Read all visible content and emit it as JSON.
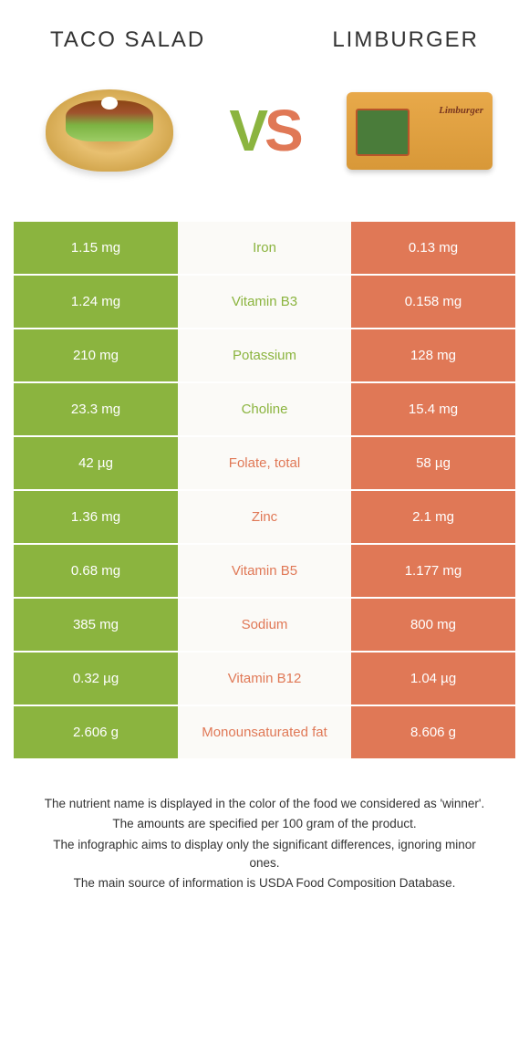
{
  "header": {
    "left_title": "Taco salad",
    "right_title": "Limburger"
  },
  "vs": {
    "v": "V",
    "s": "S"
  },
  "colors": {
    "left": "#8bb43f",
    "right": "#e07856",
    "mid_bg": "#fbfaf7"
  },
  "rows": [
    {
      "left": "1.15 mg",
      "nutrient": "Iron",
      "right": "0.13 mg",
      "winner": "left"
    },
    {
      "left": "1.24 mg",
      "nutrient": "Vitamin B3",
      "right": "0.158 mg",
      "winner": "left"
    },
    {
      "left": "210 mg",
      "nutrient": "Potassium",
      "right": "128 mg",
      "winner": "left"
    },
    {
      "left": "23.3 mg",
      "nutrient": "Choline",
      "right": "15.4 mg",
      "winner": "left"
    },
    {
      "left": "42 µg",
      "nutrient": "Folate, total",
      "right": "58 µg",
      "winner": "right"
    },
    {
      "left": "1.36 mg",
      "nutrient": "Zinc",
      "right": "2.1 mg",
      "winner": "right"
    },
    {
      "left": "0.68 mg",
      "nutrient": "Vitamin B5",
      "right": "1.177 mg",
      "winner": "right"
    },
    {
      "left": "385 mg",
      "nutrient": "Sodium",
      "right": "800 mg",
      "winner": "right"
    },
    {
      "left": "0.32 µg",
      "nutrient": "Vitamin B12",
      "right": "1.04 µg",
      "winner": "right"
    },
    {
      "left": "2.606 g",
      "nutrient": "Monounsaturated fat",
      "right": "8.606 g",
      "winner": "right"
    }
  ],
  "footnotes": [
    "The nutrient name is displayed in the color of the food we considered as 'winner'.",
    "The amounts are specified per 100 gram of the product.",
    "The infographic aims to display only the significant differences, ignoring minor ones.",
    "The main source of information is USDA Food Composition Database."
  ]
}
